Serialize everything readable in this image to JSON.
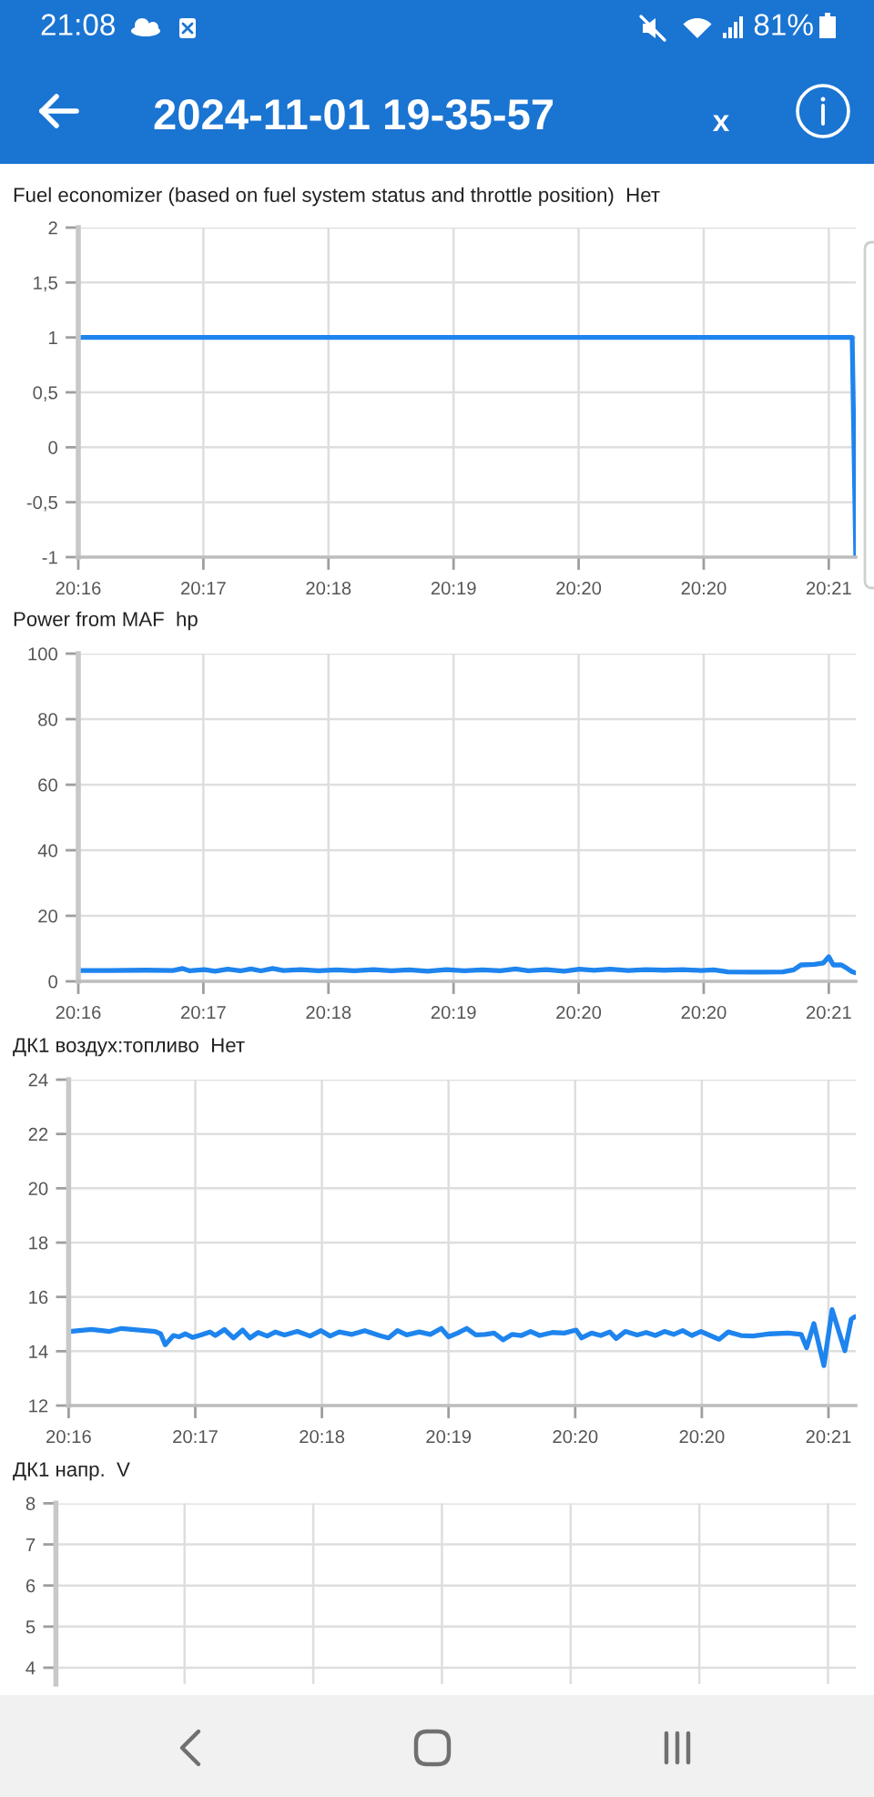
{
  "chart_data": [
    {
      "type": "line",
      "title": "Fuel economizer (based on fuel system status and throttle position)  Нет",
      "annotations": [
        "21:08",
        "81%",
        "2024-11-01 19-35-57",
        "x"
      ],
      "x": [
        20.2708,
        20.3568,
        20.3572
      ],
      "values": [
        1,
        1,
        -1
      ],
      "color": "#1e84ee",
      "xlim": [
        20.2708,
        20.3572
      ],
      "xticks": [
        {
          "value": 20.2708,
          "label": "20:16"
        },
        {
          "value": 20.2847,
          "label": "20:17"
        },
        {
          "value": 20.2986,
          "label": "20:18"
        },
        {
          "value": 20.3125,
          "label": "20:19"
        },
        {
          "value": 20.3264,
          "label": "20:20"
        },
        {
          "value": 20.3403,
          "label": "20:20"
        },
        {
          "value": 20.3542,
          "label": "20:21"
        }
      ],
      "ylim": [
        -1,
        2
      ],
      "yticks": [
        -1,
        {
          "value": -0.5,
          "label": "-0,5"
        },
        0,
        {
          "value": 0.5,
          "label": "0,5"
        },
        1,
        {
          "value": 1.5,
          "label": "1,5"
        },
        2
      ],
      "grid": true
    },
    {
      "type": "line",
      "title": "Power from MAF  hp",
      "x": [
        20.2708,
        20.2743,
        20.2783,
        20.2813,
        20.2824,
        20.2832,
        20.2848,
        20.286,
        20.2874,
        20.2888,
        20.29,
        20.2911,
        20.2924,
        20.2936,
        20.2955,
        20.2975,
        20.2995,
        20.3015,
        20.3036,
        20.3056,
        20.3076,
        20.3096,
        20.3117,
        20.3137,
        20.3157,
        20.3177,
        20.3194,
        20.3208,
        20.3228,
        20.3248,
        20.3265,
        20.3281,
        20.3299,
        20.3319,
        20.3339,
        20.3359,
        20.338,
        20.34,
        20.3414,
        20.343,
        20.3461,
        20.3491,
        20.3503,
        20.3511,
        20.3526,
        20.3536,
        20.3542,
        20.3547,
        20.3556,
        20.3562,
        20.3568,
        20.3572
      ],
      "values": [
        3.3,
        3.3,
        3.4,
        3.3,
        3.9,
        3.2,
        3.6,
        3.1,
        3.7,
        3.2,
        3.8,
        3.2,
        3.9,
        3.3,
        3.6,
        3.2,
        3.5,
        3.2,
        3.6,
        3.2,
        3.5,
        3.1,
        3.6,
        3.2,
        3.5,
        3.2,
        3.8,
        3.2,
        3.6,
        3.1,
        3.7,
        3.4,
        3.7,
        3.3,
        3.6,
        3.4,
        3.6,
        3.3,
        3.5,
        2.9,
        2.8,
        2.9,
        3.5,
        5.0,
        5.2,
        5.6,
        7.5,
        5.0,
        5.0,
        4.0,
        2.9,
        2.6
      ],
      "color": "#1e84ee",
      "xlim": [
        20.2708,
        20.3572
      ],
      "xticks": [
        {
          "value": 20.2708,
          "label": "20:16"
        },
        {
          "value": 20.2847,
          "label": "20:17"
        },
        {
          "value": 20.2986,
          "label": "20:18"
        },
        {
          "value": 20.3125,
          "label": "20:19"
        },
        {
          "value": 20.3264,
          "label": "20:20"
        },
        {
          "value": 20.3403,
          "label": "20:20"
        },
        {
          "value": 20.3542,
          "label": "20:21"
        }
      ],
      "ylim": [
        0,
        100
      ],
      "yticks": [
        0,
        20,
        40,
        60,
        80,
        100
      ],
      "grid": true
    },
    {
      "type": "line",
      "title": "ДК1 воздух:топливо  Нет",
      "x": [
        20.2709,
        20.2733,
        20.2753,
        20.2766,
        20.2786,
        20.2803,
        20.2809,
        20.2814,
        20.2823,
        20.2829,
        20.2836,
        20.2844,
        20.2853,
        20.2863,
        20.2869,
        20.2879,
        20.2889,
        20.2899,
        20.2907,
        20.2916,
        20.2926,
        20.2935,
        20.2945,
        20.2959,
        20.2973,
        20.2985,
        20.2995,
        20.3005,
        20.3019,
        20.3033,
        20.3049,
        20.3059,
        20.3069,
        20.3079,
        20.3093,
        20.3105,
        20.3117,
        20.3125,
        20.3135,
        20.3145,
        20.3155,
        20.3165,
        20.3175,
        20.3185,
        20.3195,
        20.3205,
        20.3215,
        20.3225,
        20.3239,
        20.3252,
        20.3265,
        20.3271,
        20.3282,
        20.3292,
        20.3302,
        20.3309,
        20.3319,
        20.3332,
        20.3342,
        20.3352,
        20.3362,
        20.3372,
        20.3382,
        20.3392,
        20.3402,
        20.3412,
        20.3422,
        20.3432,
        20.3446,
        20.3459,
        20.3478,
        20.3498,
        20.3512,
        20.3518,
        20.3526,
        20.3537,
        20.3546,
        20.356,
        20.3567,
        20.3571
      ],
      "values": [
        14.73,
        14.8,
        14.73,
        14.84,
        14.78,
        14.73,
        14.64,
        14.24,
        14.58,
        14.53,
        14.64,
        14.51,
        14.6,
        14.71,
        14.58,
        14.8,
        14.49,
        14.78,
        14.49,
        14.69,
        14.56,
        14.71,
        14.6,
        14.73,
        14.56,
        14.76,
        14.56,
        14.71,
        14.62,
        14.76,
        14.58,
        14.49,
        14.76,
        14.6,
        14.71,
        14.62,
        14.84,
        14.53,
        14.67,
        14.84,
        14.6,
        14.62,
        14.67,
        14.42,
        14.62,
        14.58,
        14.73,
        14.58,
        14.69,
        14.67,
        14.78,
        14.49,
        14.67,
        14.58,
        14.71,
        14.47,
        14.73,
        14.6,
        14.69,
        14.58,
        14.73,
        14.62,
        14.76,
        14.58,
        14.73,
        14.58,
        14.44,
        14.71,
        14.58,
        14.56,
        14.64,
        14.67,
        14.62,
        14.13,
        15.02,
        13.47,
        15.53,
        14.02,
        15.18,
        15.27
      ],
      "color": "#1e84ee",
      "xlim": [
        20.2708,
        20.3572
      ],
      "xticks": [
        {
          "value": 20.2708,
          "label": "20:16"
        },
        {
          "value": 20.2847,
          "label": "20:17"
        },
        {
          "value": 20.2986,
          "label": "20:18"
        },
        {
          "value": 20.3125,
          "label": "20:19"
        },
        {
          "value": 20.3264,
          "label": "20:20"
        },
        {
          "value": 20.3403,
          "label": "20:20"
        },
        {
          "value": 20.3542,
          "label": "20:21"
        }
      ],
      "ylim": [
        12,
        24
      ],
      "yticks": [
        12,
        14,
        16,
        18,
        20,
        22,
        24
      ],
      "grid": true
    },
    {
      "type": "line",
      "title": "ДК1 напр.  V",
      "xlim": [
        20.2708,
        20.3572
      ],
      "xticks": [
        20.2708,
        20.2847,
        20.2986,
        20.3125,
        20.3264,
        20.3403,
        20.3542
      ],
      "ylim": [
        3.6,
        8
      ],
      "yticks": [
        4,
        5,
        6,
        7,
        8
      ],
      "tick_labels": "y",
      "grid": true
    }
  ]
}
